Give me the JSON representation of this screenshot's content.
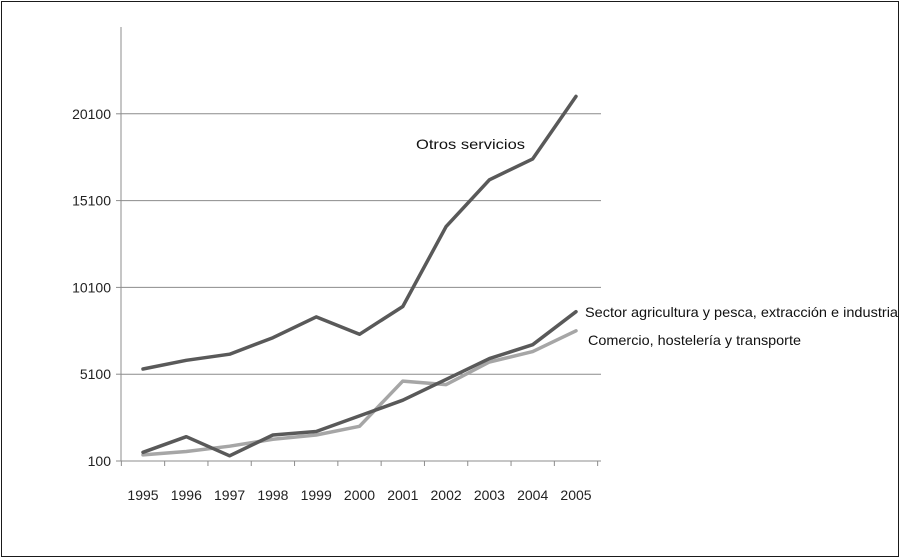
{
  "chart_data": {
    "type": "line",
    "title": "",
    "xlabel": "",
    "ylabel": "",
    "categories": [
      "1995",
      "1996",
      "1997",
      "1998",
      "1999",
      "2000",
      "2001",
      "2002",
      "2003",
      "2004",
      "2005"
    ],
    "y_ticks": [
      "100",
      "5100",
      "10100",
      "15100",
      "20100"
    ],
    "ylim": [
      100,
      25100
    ],
    "grid": "horizontal",
    "legend": "none (inline labels)",
    "series": [
      {
        "name": "Otros servicios",
        "color": "#595959",
        "values": [
          5400,
          5900,
          6250,
          7200,
          8400,
          7400,
          9000,
          13600,
          16300,
          17500,
          21100
        ]
      },
      {
        "name": "Sector agricultura y pesca, extracción e industria",
        "color": "#595959",
        "values": [
          600,
          1500,
          400,
          1600,
          1800,
          2700,
          3600,
          4800,
          6000,
          6800,
          8700
        ]
      },
      {
        "name": "Comercio, hostelería y transporte",
        "color": "#a6a6a6",
        "values": [
          450,
          650,
          950,
          1350,
          1600,
          2100,
          4700,
          4500,
          5800,
          6400,
          7600
        ]
      }
    ]
  }
}
